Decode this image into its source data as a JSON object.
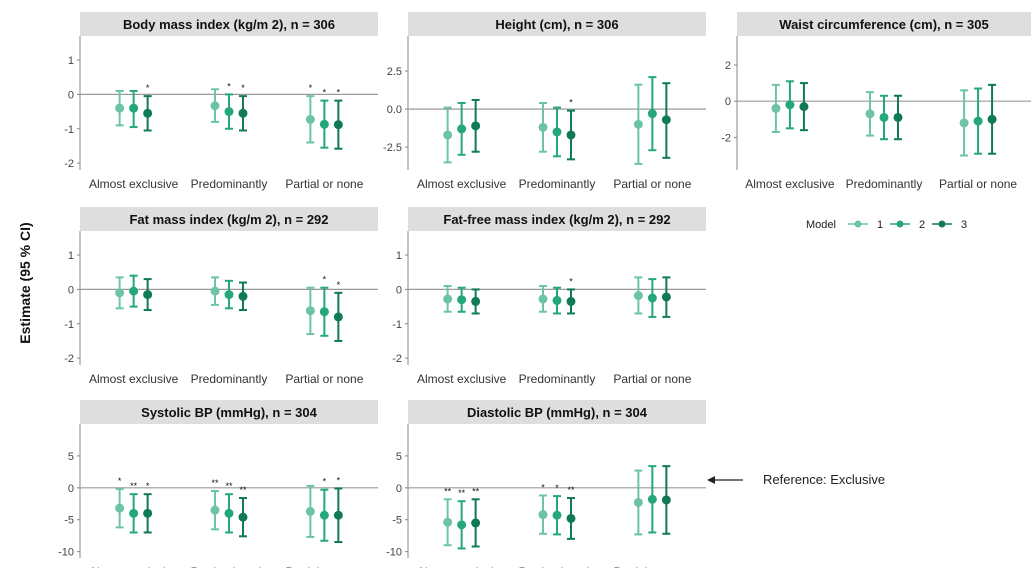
{
  "y_axis_label": "Estimate (95 % CI)",
  "legend": {
    "title": "Model",
    "items": [
      {
        "label": "1",
        "color": "#6cc4a4"
      },
      {
        "label": "2",
        "color": "#25a878"
      },
      {
        "label": "3",
        "color": "#0f7a55"
      }
    ]
  },
  "reference_note": "Reference: Exclusive",
  "colors": {
    "model1": "#6cc4a4",
    "model2": "#25a878",
    "model3": "#0f7a55",
    "strip": "#dedede",
    "zero_line": "#9a9a9a"
  },
  "chart_data": [
    {
      "type": "scatter",
      "title": "Body mass index (kg/m  2), n = 306",
      "categories": [
        "Almost exclusive",
        "Predominantly",
        "Partial or none"
      ],
      "yticks": [
        1,
        0,
        -1,
        -2
      ],
      "ylim": [
        -2.2,
        1.7
      ],
      "series": [
        {
          "name": "1",
          "estimates": [
            -0.4,
            -0.33,
            -0.73
          ],
          "lower": [
            -0.9,
            -0.8,
            -1.4
          ],
          "upper": [
            0.1,
            0.15,
            -0.05
          ],
          "sig": [
            "",
            "",
            "*"
          ]
        },
        {
          "name": "2",
          "estimates": [
            -0.4,
            -0.5,
            -0.87
          ],
          "lower": [
            -0.95,
            -1.0,
            -1.55
          ],
          "upper": [
            0.1,
            0.0,
            -0.18
          ],
          "sig": [
            "",
            "*",
            "*"
          ]
        },
        {
          "name": "3",
          "estimates": [
            -0.55,
            -0.55,
            -0.88
          ],
          "lower": [
            -1.05,
            -1.05,
            -1.58
          ],
          "upper": [
            -0.05,
            -0.05,
            -0.18
          ],
          "sig": [
            "*",
            "*",
            "*"
          ]
        }
      ]
    },
    {
      "type": "scatter",
      "title": "Height (cm), n = 306",
      "categories": [
        "Almost exclusive",
        "Predominantly",
        "Partial or none"
      ],
      "yticks": [
        2.5,
        0.0,
        -2.5
      ],
      "ylim": [
        -4.0,
        4.8
      ],
      "series": [
        {
          "name": "1",
          "estimates": [
            -1.7,
            -1.2,
            -1.0
          ],
          "lower": [
            -3.5,
            -2.8,
            -3.6
          ],
          "upper": [
            0.1,
            0.4,
            1.6
          ],
          "sig": [
            "",
            "",
            ""
          ]
        },
        {
          "name": "2",
          "estimates": [
            -1.3,
            -1.5,
            -0.3
          ],
          "lower": [
            -3.0,
            -3.1,
            -2.7
          ],
          "upper": [
            0.4,
            0.1,
            2.1
          ],
          "sig": [
            "",
            "",
            ""
          ]
        },
        {
          "name": "3",
          "estimates": [
            -1.1,
            -1.7,
            -0.7
          ],
          "lower": [
            -2.8,
            -3.3,
            -3.2
          ],
          "upper": [
            0.6,
            -0.1,
            1.7
          ],
          "sig": [
            "",
            "*",
            ""
          ]
        }
      ]
    },
    {
      "type": "scatter",
      "title": "Waist circumference (cm), n = 305",
      "categories": [
        "Almost exclusive",
        "Predominantly",
        "Partial or none"
      ],
      "yticks": [
        2,
        0,
        -2
      ],
      "ylim": [
        -3.8,
        3.6
      ],
      "series": [
        {
          "name": "1",
          "estimates": [
            -0.4,
            -0.7,
            -1.2
          ],
          "lower": [
            -1.7,
            -1.9,
            -3.0
          ],
          "upper": [
            0.9,
            0.5,
            0.6
          ],
          "sig": [
            "",
            "",
            ""
          ]
        },
        {
          "name": "2",
          "estimates": [
            -0.2,
            -0.9,
            -1.1
          ],
          "lower": [
            -1.5,
            -2.1,
            -2.9
          ],
          "upper": [
            1.1,
            0.3,
            0.7
          ],
          "sig": [
            "",
            "",
            ""
          ]
        },
        {
          "name": "3",
          "estimates": [
            -0.3,
            -0.9,
            -1.0
          ],
          "lower": [
            -1.6,
            -2.1,
            -2.9
          ],
          "upper": [
            1.0,
            0.3,
            0.9
          ],
          "sig": [
            "",
            "",
            ""
          ]
        }
      ]
    },
    {
      "type": "scatter",
      "title": "Fat mass index (kg/m  2), n = 292",
      "categories": [
        "Almost exclusive",
        "Predominantly",
        "Partial or none"
      ],
      "yticks": [
        1,
        0,
        -1,
        -2
      ],
      "ylim": [
        -2.2,
        1.7
      ],
      "series": [
        {
          "name": "1",
          "estimates": [
            -0.1,
            -0.05,
            -0.62
          ],
          "lower": [
            -0.55,
            -0.45,
            -1.3
          ],
          "upper": [
            0.35,
            0.35,
            0.05
          ],
          "sig": [
            "",
            "",
            ""
          ]
        },
        {
          "name": "2",
          "estimates": [
            -0.05,
            -0.15,
            -0.65
          ],
          "lower": [
            -0.5,
            -0.55,
            -1.35
          ],
          "upper": [
            0.4,
            0.25,
            0.05
          ],
          "sig": [
            "",
            "",
            "*"
          ]
        },
        {
          "name": "3",
          "estimates": [
            -0.15,
            -0.2,
            -0.8
          ],
          "lower": [
            -0.6,
            -0.6,
            -1.5
          ],
          "upper": [
            0.3,
            0.2,
            -0.1
          ],
          "sig": [
            "",
            "",
            "*"
          ]
        }
      ]
    },
    {
      "type": "scatter",
      "title": "Fat-free mass index (kg/m  2), n = 292",
      "categories": [
        "Almost exclusive",
        "Predominantly",
        "Partial or none"
      ],
      "yticks": [
        1,
        0,
        -1,
        -2
      ],
      "ylim": [
        -2.2,
        1.7
      ],
      "series": [
        {
          "name": "1",
          "estimates": [
            -0.28,
            -0.28,
            -0.18
          ],
          "lower": [
            -0.65,
            -0.65,
            -0.7
          ],
          "upper": [
            0.1,
            0.1,
            0.35
          ],
          "sig": [
            "",
            "",
            ""
          ]
        },
        {
          "name": "2",
          "estimates": [
            -0.3,
            -0.32,
            -0.25
          ],
          "lower": [
            -0.65,
            -0.7,
            -0.8
          ],
          "upper": [
            0.05,
            0.05,
            0.3
          ],
          "sig": [
            "",
            "",
            ""
          ]
        },
        {
          "name": "3",
          "estimates": [
            -0.35,
            -0.35,
            -0.22
          ],
          "lower": [
            -0.7,
            -0.7,
            -0.8
          ],
          "upper": [
            0.0,
            0.0,
            0.35
          ],
          "sig": [
            "",
            "*",
            ""
          ]
        }
      ]
    },
    {
      "type": "scatter",
      "title": "Systolic BP (mmHg), n = 304",
      "categories": [
        "Almost exclusive",
        "Predominantly",
        "Partial or none"
      ],
      "yticks": [
        5,
        0,
        -5,
        -10
      ],
      "ylim": [
        -11,
        10
      ],
      "series": [
        {
          "name": "1",
          "estimates": [
            -3.2,
            -3.5,
            -3.7
          ],
          "lower": [
            -6.2,
            -6.5,
            -7.7
          ],
          "upper": [
            -0.2,
            -0.5,
            0.3
          ],
          "sig": [
            "*",
            "**",
            ""
          ]
        },
        {
          "name": "2",
          "estimates": [
            -4.0,
            -4.0,
            -4.3
          ],
          "lower": [
            -7.0,
            -7.0,
            -8.3
          ],
          "upper": [
            -1.0,
            -1.0,
            -0.3
          ],
          "sig": [
            "**",
            "**",
            "*"
          ]
        },
        {
          "name": "3",
          "estimates": [
            -4.0,
            -4.6,
            -4.3
          ],
          "lower": [
            -7.0,
            -7.6,
            -8.5
          ],
          "upper": [
            -1.0,
            -1.6,
            -0.1
          ],
          "sig": [
            "*",
            "**",
            "*"
          ]
        }
      ]
    },
    {
      "type": "scatter",
      "title": "Diastolic BP (mmHg), n = 304",
      "categories": [
        "Almost exclusive",
        "Predominantly",
        "Partial or none"
      ],
      "yticks": [
        5,
        0,
        -5,
        -10
      ],
      "ylim": [
        -11,
        10
      ],
      "series": [
        {
          "name": "1",
          "estimates": [
            -5.4,
            -4.2,
            -2.3
          ],
          "lower": [
            -9.0,
            -7.2,
            -7.3
          ],
          "upper": [
            -1.8,
            -1.2,
            2.7
          ],
          "sig": [
            "**",
            "*",
            ""
          ]
        },
        {
          "name": "2",
          "estimates": [
            -5.8,
            -4.3,
            -1.8
          ],
          "lower": [
            -9.5,
            -7.3,
            -7.0
          ],
          "upper": [
            -2.1,
            -1.3,
            3.4
          ],
          "sig": [
            "**",
            "*",
            ""
          ]
        },
        {
          "name": "3",
          "estimates": [
            -5.5,
            -4.8,
            -1.9
          ],
          "lower": [
            -9.2,
            -8.0,
            -7.2
          ],
          "upper": [
            -1.8,
            -1.6,
            3.4
          ],
          "sig": [
            "**",
            "**",
            ""
          ]
        }
      ]
    }
  ]
}
